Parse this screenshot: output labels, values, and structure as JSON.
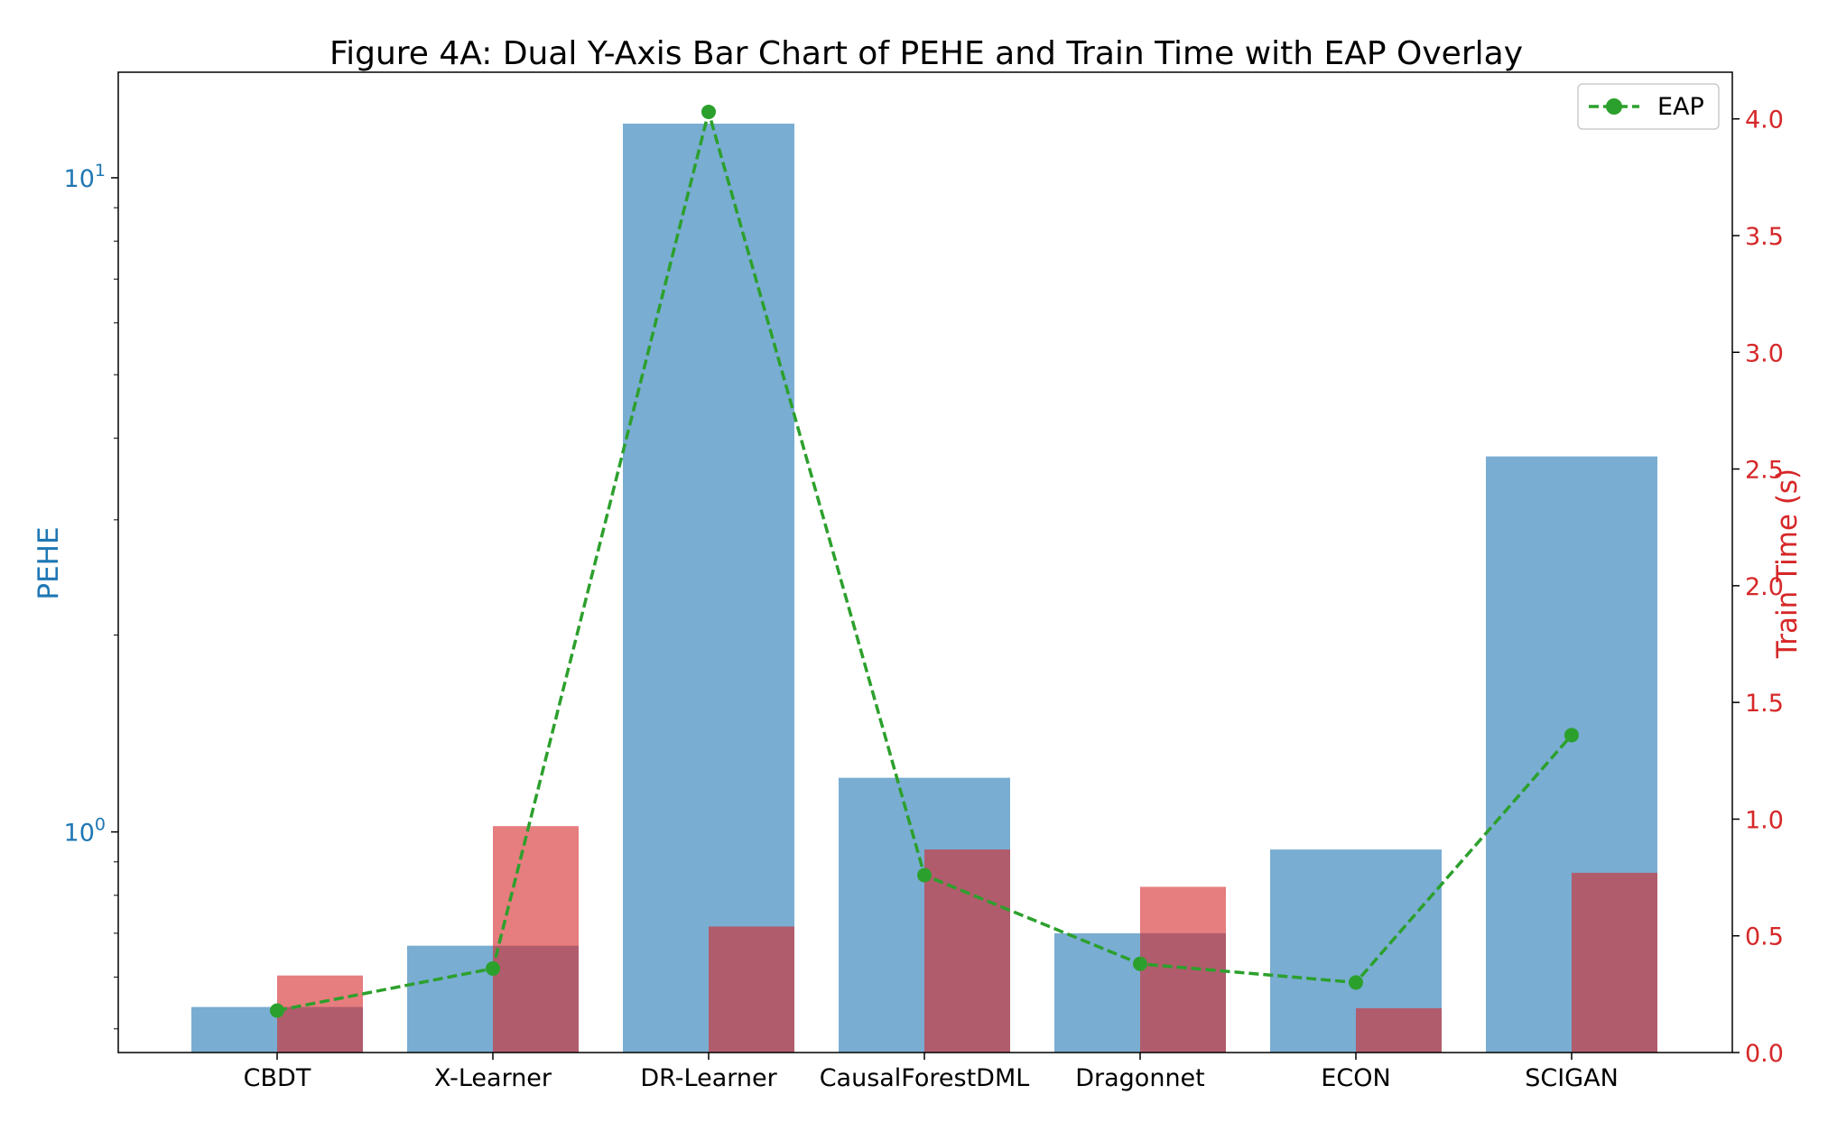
{
  "chart_data": {
    "type": "bar",
    "title": "Figure 4A: Dual Y-Axis Bar Chart of PEHE and Train Time with EAP Overlay",
    "categories": [
      "CBDT",
      "X-Learner",
      "DR-Learner",
      "CausalForestDML",
      "Dragonnet",
      "ECON",
      "SCIGAN"
    ],
    "series": [
      {
        "name": "PEHE",
        "axis": "left",
        "type": "bar",
        "color": "#1f77b4",
        "opacity": 0.6,
        "values": [
          0.54,
          0.67,
          12.1,
          1.21,
          0.7,
          0.94,
          3.75
        ]
      },
      {
        "name": "Train Time (s)",
        "axis": "right",
        "type": "bar",
        "color": "#d62728",
        "opacity": 0.6,
        "values": [
          0.33,
          0.97,
          0.54,
          0.87,
          0.71,
          0.19,
          0.77
        ]
      },
      {
        "name": "EAP",
        "axis": "right",
        "type": "line",
        "color": "#2ca02c",
        "style": "dashed",
        "marker": "circle",
        "values": [
          0.18,
          0.36,
          4.03,
          0.76,
          0.38,
          0.3,
          1.36
        ]
      }
    ],
    "left_axis": {
      "label": "PEHE",
      "scale": "log",
      "lim": [
        0.46,
        14.5
      ],
      "color": "#1f77b4",
      "ticks": [
        {
          "value": 1,
          "base": "10",
          "exp": "0"
        },
        {
          "value": 10,
          "base": "10",
          "exp": "1"
        }
      ]
    },
    "right_axis": {
      "label": "Train Time (s)",
      "scale": "linear",
      "lim": [
        0,
        4.2
      ],
      "color": "#d62728",
      "ticks": [
        "0.0",
        "0.5",
        "1.0",
        "1.5",
        "2.0",
        "2.5",
        "3.0",
        "3.5",
        "4.0"
      ]
    },
    "legend": {
      "position": "top-right",
      "entries": [
        "EAP"
      ]
    },
    "grid": false
  }
}
